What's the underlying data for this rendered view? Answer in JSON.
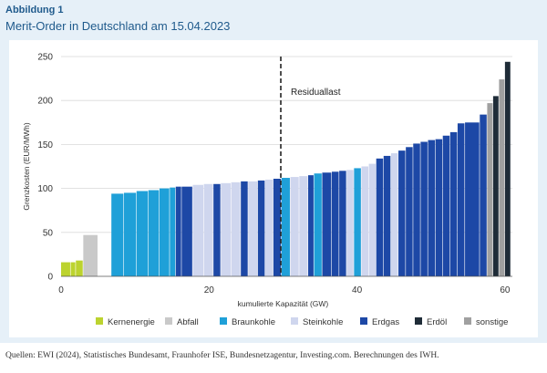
{
  "figure_label": "Abbildung 1",
  "title": "Merit-Order in Deutschland am 15.04.2023",
  "source": "Quellen: EWI (2024), Statistisches Bundesamt, Fraunhofer ISE, Bundesnetzagentur, Investing.com. Berechnungen des IWH.",
  "chart_data": {
    "type": "bar",
    "xlabel": "kumulierte Kapazität (GW)",
    "ylabel": "Grenzkosten (EUR/MWh)",
    "xlim": [
      0,
      61
    ],
    "ylim": [
      0,
      250
    ],
    "xticks": [
      0,
      20,
      40,
      60
    ],
    "yticks": [
      0,
      50,
      100,
      150,
      200,
      250
    ],
    "grid": "horizontal",
    "legend_position": "bottom",
    "annotation": {
      "label": "Residuallast",
      "x": 29.7
    },
    "colors": {
      "kern": "#bcd32f",
      "abfall": "#c9c9c9",
      "braun": "#1fa0d8",
      "stein": "#cfd6ee",
      "gas": "#1d48a6",
      "oel": "#1f2c38",
      "sonst": "#a0a0a0"
    },
    "series": [
      {
        "key": "kern",
        "name": "Kernenergie"
      },
      {
        "key": "abfall",
        "name": "Abfall"
      },
      {
        "key": "braun",
        "name": "Braunkohle"
      },
      {
        "key": "stein",
        "name": "Steinkohle"
      },
      {
        "key": "gas",
        "name": "Erdgas"
      },
      {
        "key": "oel",
        "name": "Erdöl"
      },
      {
        "key": "sonst",
        "name": "sonstige"
      }
    ],
    "bars": [
      {
        "x0": 0.0,
        "x1": 1.3,
        "y": 16,
        "key": "kern"
      },
      {
        "x0": 1.3,
        "x1": 2.0,
        "y": 16,
        "key": "kern"
      },
      {
        "x0": 2.0,
        "x1": 3.0,
        "y": 18,
        "key": "kern"
      },
      {
        "x0": 3.0,
        "x1": 5.0,
        "y": 47,
        "key": "abfall"
      },
      {
        "x0": 5.0,
        "x1": 6.8,
        "y": 0,
        "key": "abfall"
      },
      {
        "x0": 6.8,
        "x1": 8.5,
        "y": 94,
        "key": "braun"
      },
      {
        "x0": 8.5,
        "x1": 10.2,
        "y": 95,
        "key": "braun"
      },
      {
        "x0": 10.2,
        "x1": 11.8,
        "y": 97,
        "key": "braun"
      },
      {
        "x0": 11.8,
        "x1": 13.3,
        "y": 98,
        "key": "braun"
      },
      {
        "x0": 13.3,
        "x1": 14.7,
        "y": 100,
        "key": "braun"
      },
      {
        "x0": 14.7,
        "x1": 15.5,
        "y": 101,
        "key": "braun"
      },
      {
        "x0": 15.5,
        "x1": 16.3,
        "y": 102,
        "key": "gas"
      },
      {
        "x0": 16.3,
        "x1": 17.8,
        "y": 102,
        "key": "gas"
      },
      {
        "x0": 17.8,
        "x1": 19.3,
        "y": 104,
        "key": "stein"
      },
      {
        "x0": 19.3,
        "x1": 20.6,
        "y": 105,
        "key": "stein"
      },
      {
        "x0": 20.6,
        "x1": 21.6,
        "y": 105,
        "key": "gas"
      },
      {
        "x0": 21.6,
        "x1": 23.0,
        "y": 106,
        "key": "stein"
      },
      {
        "x0": 23.0,
        "x1": 24.3,
        "y": 107,
        "key": "stein"
      },
      {
        "x0": 24.3,
        "x1": 25.3,
        "y": 108,
        "key": "gas"
      },
      {
        "x0": 25.3,
        "x1": 26.6,
        "y": 108,
        "key": "stein"
      },
      {
        "x0": 26.6,
        "x1": 27.6,
        "y": 109,
        "key": "gas"
      },
      {
        "x0": 27.6,
        "x1": 28.7,
        "y": 110,
        "key": "stein"
      },
      {
        "x0": 28.7,
        "x1": 29.8,
        "y": 111,
        "key": "gas"
      },
      {
        "x0": 29.8,
        "x1": 31.0,
        "y": 112,
        "key": "braun"
      },
      {
        "x0": 31.0,
        "x1": 32.2,
        "y": 113,
        "key": "stein"
      },
      {
        "x0": 32.2,
        "x1": 33.4,
        "y": 114,
        "key": "stein"
      },
      {
        "x0": 33.4,
        "x1": 34.2,
        "y": 115,
        "key": "gas"
      },
      {
        "x0": 34.2,
        "x1": 35.3,
        "y": 117,
        "key": "braun"
      },
      {
        "x0": 35.3,
        "x1": 36.6,
        "y": 118,
        "key": "gas"
      },
      {
        "x0": 36.6,
        "x1": 37.6,
        "y": 119,
        "key": "gas"
      },
      {
        "x0": 37.6,
        "x1": 38.6,
        "y": 120,
        "key": "gas"
      },
      {
        "x0": 38.6,
        "x1": 39.6,
        "y": 121,
        "key": "stein"
      },
      {
        "x0": 39.6,
        "x1": 40.6,
        "y": 123,
        "key": "braun"
      },
      {
        "x0": 40.6,
        "x1": 41.6,
        "y": 125,
        "key": "stein"
      },
      {
        "x0": 41.6,
        "x1": 42.6,
        "y": 128,
        "key": "stein"
      },
      {
        "x0": 42.6,
        "x1": 43.6,
        "y": 134,
        "key": "gas"
      },
      {
        "x0": 43.6,
        "x1": 44.6,
        "y": 137,
        "key": "gas"
      },
      {
        "x0": 44.6,
        "x1": 45.6,
        "y": 140,
        "key": "stein"
      },
      {
        "x0": 45.6,
        "x1": 46.6,
        "y": 143,
        "key": "gas"
      },
      {
        "x0": 46.6,
        "x1": 47.6,
        "y": 147,
        "key": "gas"
      },
      {
        "x0": 47.6,
        "x1": 48.6,
        "y": 151,
        "key": "gas"
      },
      {
        "x0": 48.6,
        "x1": 49.6,
        "y": 153,
        "key": "gas"
      },
      {
        "x0": 49.6,
        "x1": 50.6,
        "y": 155,
        "key": "gas"
      },
      {
        "x0": 50.6,
        "x1": 51.6,
        "y": 156,
        "key": "gas"
      },
      {
        "x0": 51.6,
        "x1": 52.6,
        "y": 160,
        "key": "gas"
      },
      {
        "x0": 52.6,
        "x1": 53.6,
        "y": 164,
        "key": "gas"
      },
      {
        "x0": 53.6,
        "x1": 54.6,
        "y": 174,
        "key": "gas"
      },
      {
        "x0": 54.6,
        "x1": 56.6,
        "y": 175,
        "key": "gas"
      },
      {
        "x0": 56.6,
        "x1": 57.6,
        "y": 184,
        "key": "gas"
      },
      {
        "x0": 57.6,
        "x1": 58.4,
        "y": 197,
        "key": "sonst"
      },
      {
        "x0": 58.4,
        "x1": 59.2,
        "y": 205,
        "key": "oel"
      },
      {
        "x0": 59.2,
        "x1": 60.0,
        "y": 224,
        "key": "sonst"
      },
      {
        "x0": 60.0,
        "x1": 60.8,
        "y": 244,
        "key": "oel"
      }
    ]
  }
}
